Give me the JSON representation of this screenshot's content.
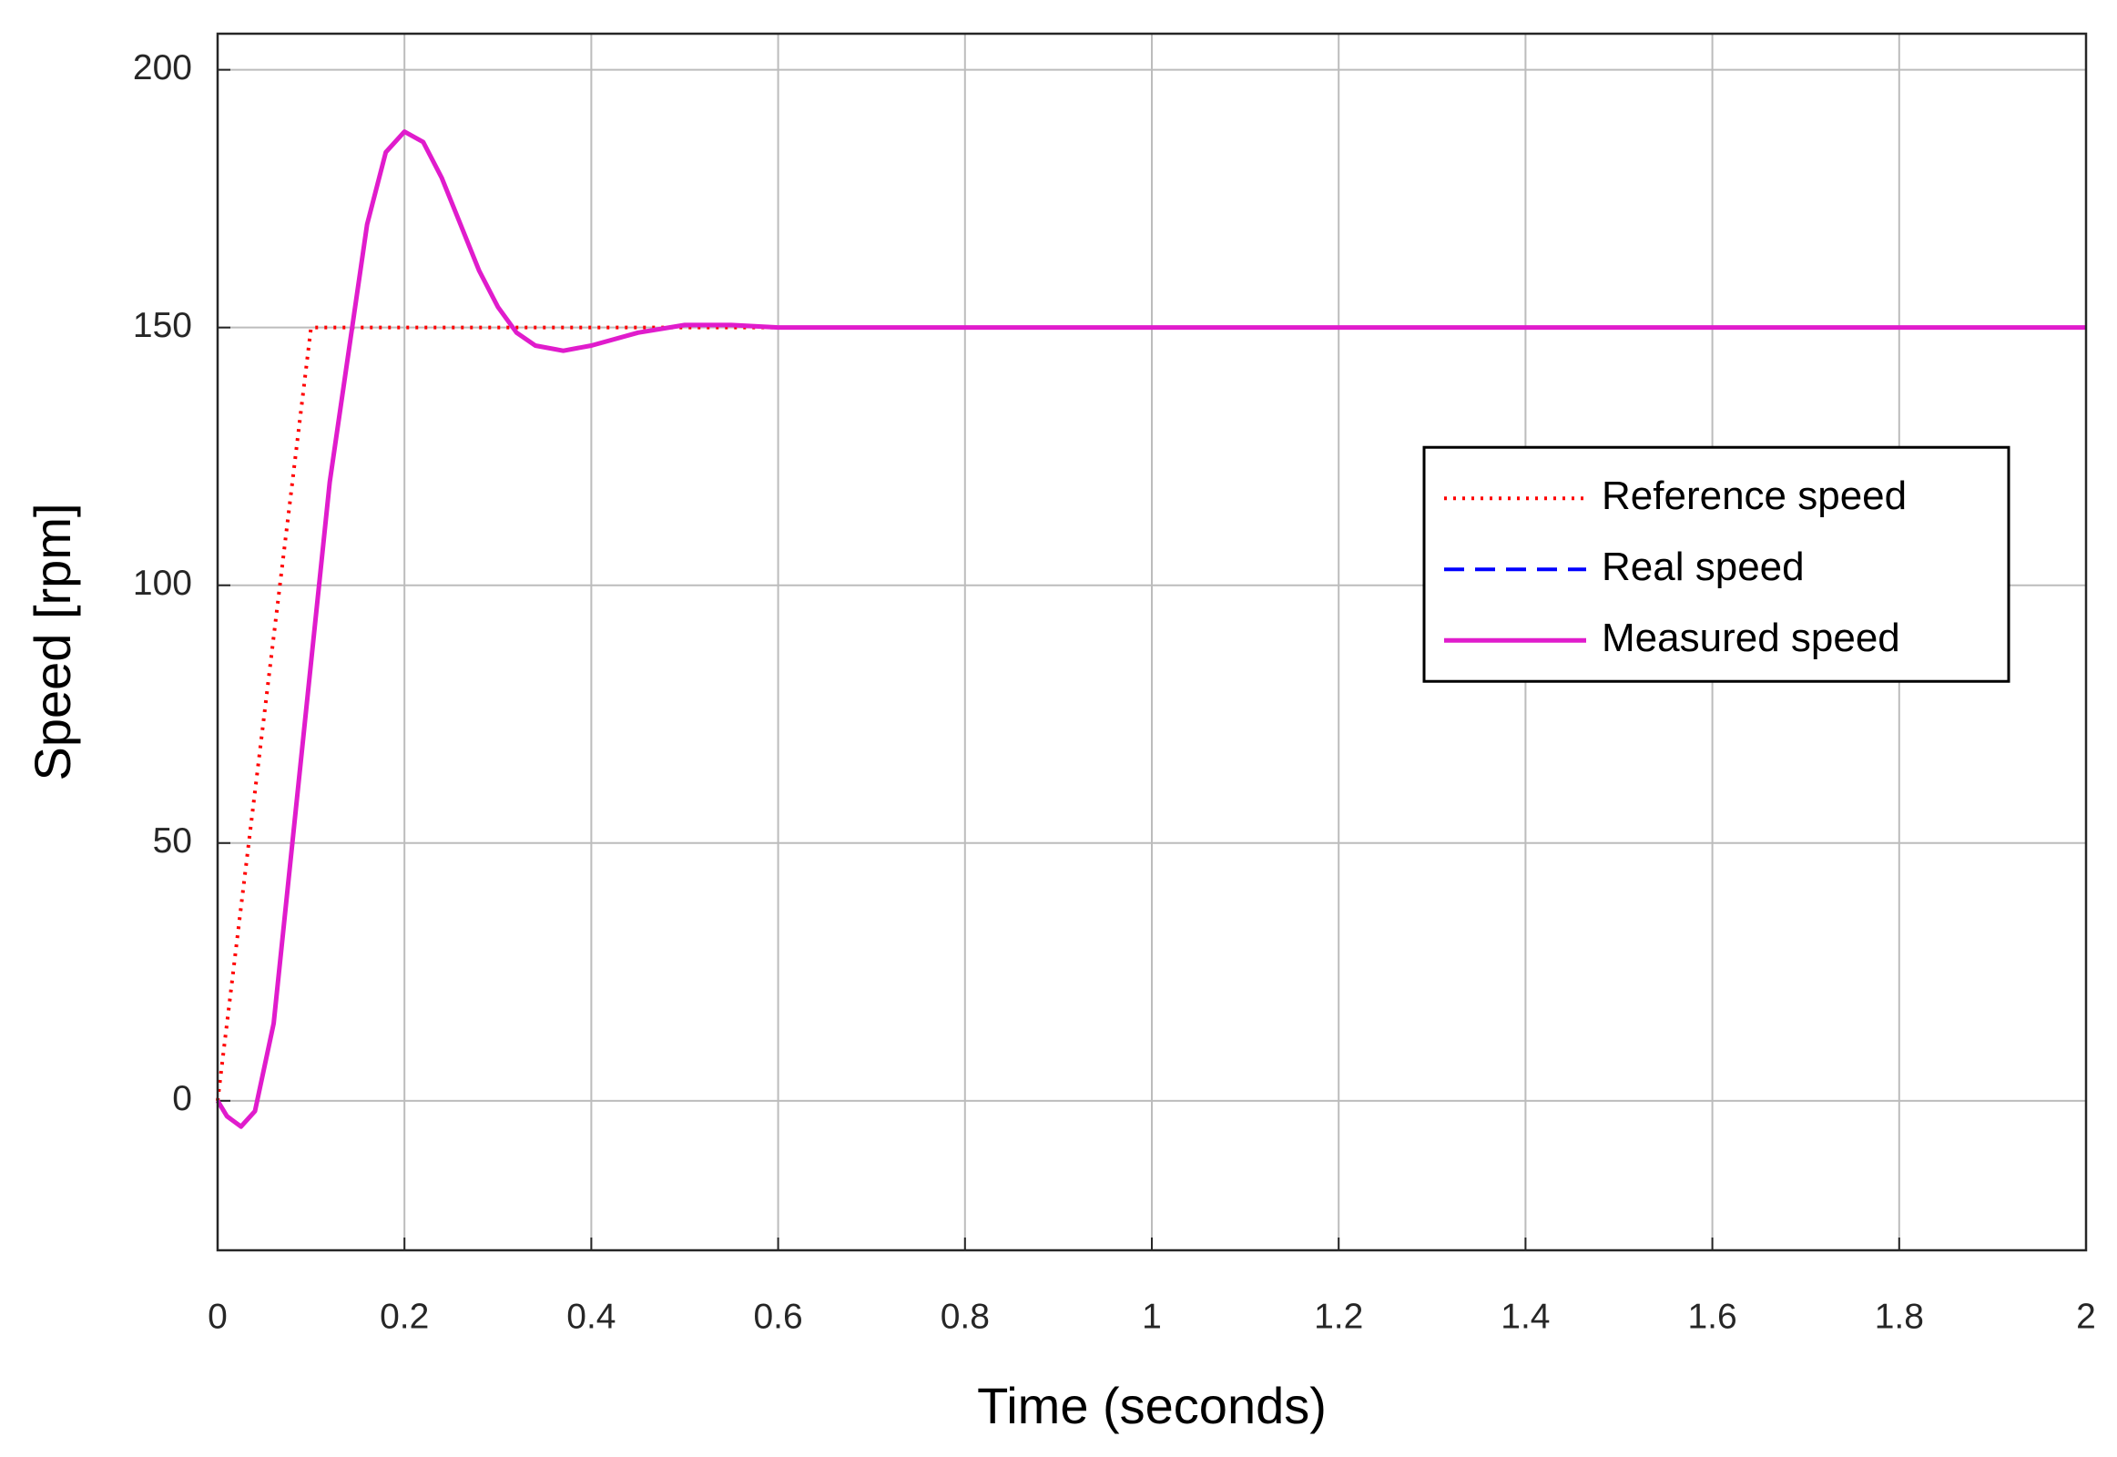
{
  "chart_data": {
    "type": "line",
    "x_label": "Time (seconds)",
    "y_label": "Speed [rpm]",
    "x": [
      0,
      0.01,
      0.025,
      0.04,
      0.06,
      0.08,
      0.1,
      0.12,
      0.14,
      0.16,
      0.18,
      0.2,
      0.22,
      0.24,
      0.26,
      0.28,
      0.3,
      0.32,
      0.34,
      0.37,
      0.4,
      0.45,
      0.5,
      0.55,
      0.6,
      0.7,
      1,
      1.5,
      2
    ],
    "series": [
      {
        "name": "Reference speed",
        "color": "#ff0000",
        "style": "dotted",
        "values": [
          0,
          15,
          37.5,
          60,
          90,
          120,
          150,
          150,
          150,
          150,
          150,
          150,
          150,
          150,
          150,
          150,
          150,
          150,
          150,
          150,
          150,
          150,
          150,
          150,
          150,
          150,
          150,
          150,
          150
        ]
      },
      {
        "name": "Real speed",
        "color": "#0000ff",
        "style": "dashed",
        "values": [
          0,
          -3,
          -5,
          -2,
          15,
          50,
          85,
          120,
          145,
          170,
          184,
          188,
          186,
          179,
          170,
          161,
          154,
          149,
          146.5,
          145.5,
          146.5,
          149,
          150.5,
          150.5,
          150,
          150,
          150,
          150,
          150
        ]
      },
      {
        "name": "Measured speed",
        "color": "#e01ccc",
        "style": "solid",
        "values": [
          0,
          -3,
          -5,
          -2,
          15,
          50,
          85,
          120,
          145,
          170,
          184,
          188,
          186,
          179,
          170,
          161,
          154,
          149,
          146.5,
          145.5,
          146.5,
          149,
          150.5,
          150.5,
          150,
          150,
          150,
          150,
          150
        ]
      }
    ],
    "xlim": [
      0,
      2
    ],
    "ylim": [
      -29,
      207
    ],
    "xticks": [
      0,
      0.2,
      0.4,
      0.6,
      0.8,
      1,
      1.2,
      1.4,
      1.6,
      1.8,
      2
    ],
    "yticks": [
      0,
      50,
      100,
      150,
      200
    ],
    "grid": true,
    "legend": "east"
  }
}
